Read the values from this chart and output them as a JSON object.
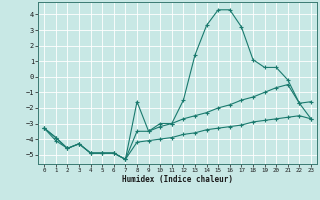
{
  "xlabel": "Humidex (Indice chaleur)",
  "ylabel": "",
  "background_color": "#c8e8e5",
  "grid_color": "#ffffff",
  "line_color": "#1a7a6e",
  "xlim": [
    -0.5,
    23.5
  ],
  "ylim": [
    -5.6,
    4.8
  ],
  "xticks": [
    0,
    1,
    2,
    3,
    4,
    5,
    6,
    7,
    8,
    9,
    10,
    11,
    12,
    13,
    14,
    15,
    16,
    17,
    18,
    19,
    20,
    21,
    22,
    23
  ],
  "yticks": [
    -5,
    -4,
    -3,
    -2,
    -1,
    0,
    1,
    2,
    3,
    4
  ],
  "line1_x": [
    0,
    1,
    2,
    3,
    4,
    5,
    6,
    7,
    8,
    9,
    10,
    11,
    12,
    13,
    14,
    15,
    16,
    17,
    18,
    19,
    20,
    21,
    22,
    23
  ],
  "line1_y": [
    -3.3,
    -4.1,
    -4.6,
    -4.3,
    -4.9,
    -4.9,
    -4.9,
    -5.3,
    -1.6,
    -3.5,
    -3.0,
    -3.0,
    -1.5,
    1.4,
    3.3,
    4.3,
    4.3,
    3.2,
    1.1,
    0.6,
    0.6,
    -0.2,
    -1.7,
    -1.6
  ],
  "line2_x": [
    0,
    1,
    2,
    3,
    4,
    5,
    6,
    7,
    8,
    9,
    10,
    11,
    12,
    13,
    14,
    15,
    16,
    17,
    18,
    19,
    20,
    21,
    22,
    23
  ],
  "line2_y": [
    -3.3,
    -3.9,
    -4.6,
    -4.3,
    -4.9,
    -4.9,
    -4.9,
    -5.3,
    -3.5,
    -3.5,
    -3.2,
    -3.0,
    -2.7,
    -2.5,
    -2.3,
    -2.0,
    -1.8,
    -1.5,
    -1.3,
    -1.0,
    -0.7,
    -0.5,
    -1.7,
    -2.7
  ],
  "line3_x": [
    0,
    1,
    2,
    3,
    4,
    5,
    6,
    7,
    8,
    9,
    10,
    11,
    12,
    13,
    14,
    15,
    16,
    17,
    18,
    19,
    20,
    21,
    22,
    23
  ],
  "line3_y": [
    -3.3,
    -3.9,
    -4.6,
    -4.3,
    -4.9,
    -4.9,
    -4.9,
    -5.3,
    -4.2,
    -4.1,
    -4.0,
    -3.9,
    -3.7,
    -3.6,
    -3.4,
    -3.3,
    -3.2,
    -3.1,
    -2.9,
    -2.8,
    -2.7,
    -2.6,
    -2.5,
    -2.7
  ]
}
